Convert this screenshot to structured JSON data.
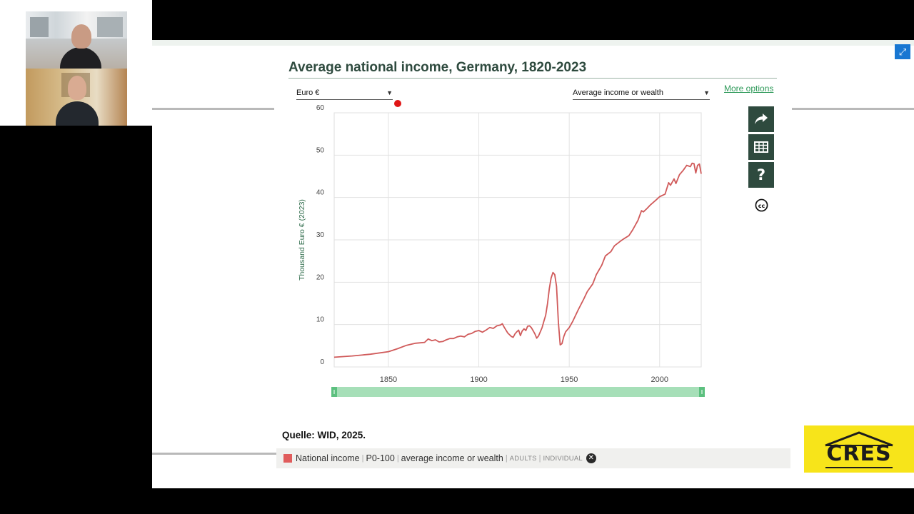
{
  "chart": {
    "title": "Average national income, Germany, 1820-2023",
    "currency_select": "Euro €",
    "metric_select": "Average income or wealth",
    "more_options": "More options",
    "source": "Quelle: WID, 2025."
  },
  "legend": {
    "series": "National income",
    "group": "P0-100",
    "metric": "average income or wealth",
    "population": "ADULTS",
    "unit": "INDIVIDUAL",
    "color": "#e05c5c"
  },
  "logo": {
    "text": "CRES",
    "bg_color": "#f7e41a"
  },
  "icons": [
    "expand-icon",
    "share-icon",
    "table-icon",
    "help-icon",
    "creative-commons-icon",
    "close-icon",
    "dropdown-caret-icon"
  ],
  "chart_data": {
    "type": "line",
    "ylabel": "Thousand Euro € (2023)",
    "xlabel": "",
    "xlim": [
      1820,
      2023
    ],
    "ylim": [
      0,
      60
    ],
    "xticks": [
      1850,
      1900,
      1950,
      2000
    ],
    "yticks": [
      0,
      10,
      20,
      30,
      40,
      50,
      60
    ],
    "grid": true,
    "series": [
      {
        "name": "National income",
        "color": "#d05a5a",
        "x": [
          1820,
          1830,
          1840,
          1850,
          1855,
          1860,
          1865,
          1870,
          1872,
          1874,
          1876,
          1878,
          1880,
          1882,
          1884,
          1886,
          1888,
          1890,
          1892,
          1894,
          1896,
          1898,
          1900,
          1902,
          1904,
          1906,
          1908,
          1910,
          1912,
          1913,
          1914,
          1916,
          1918,
          1919,
          1920,
          1921,
          1922,
          1923,
          1924,
          1925,
          1926,
          1927,
          1928,
          1929,
          1930,
          1931,
          1932,
          1933,
          1934,
          1935,
          1936,
          1937,
          1938,
          1939,
          1940,
          1941,
          1942,
          1943,
          1944,
          1945,
          1946,
          1947,
          1948,
          1950,
          1952,
          1955,
          1958,
          1960,
          1963,
          1965,
          1968,
          1970,
          1973,
          1975,
          1978,
          1980,
          1983,
          1985,
          1988,
          1990,
          1991,
          1993,
          1995,
          1998,
          2000,
          2003,
          2005,
          2006,
          2008,
          2009,
          2011,
          2013,
          2015,
          2017,
          2018,
          2019,
          2020,
          2021,
          2022,
          2023
        ],
        "y": [
          2.3,
          2.6,
          3.0,
          3.6,
          4.3,
          5.1,
          5.6,
          5.8,
          6.6,
          6.2,
          6.4,
          5.9,
          6.0,
          6.4,
          6.7,
          6.7,
          7.1,
          7.3,
          7.1,
          7.7,
          7.9,
          8.4,
          8.6,
          8.2,
          8.7,
          9.3,
          9.1,
          9.7,
          9.9,
          10.2,
          9.4,
          8.0,
          7.2,
          7.0,
          7.8,
          8.3,
          8.7,
          7.4,
          8.5,
          9.0,
          8.6,
          9.6,
          9.7,
          9.3,
          8.6,
          7.8,
          6.8,
          7.3,
          8.3,
          9.3,
          10.8,
          12.2,
          15.0,
          18.5,
          21.0,
          22.3,
          21.8,
          19.0,
          10.5,
          5.2,
          5.5,
          7.2,
          8.3,
          9.3,
          10.8,
          13.5,
          16.0,
          17.8,
          19.6,
          21.8,
          24.0,
          26.2,
          27.2,
          28.6,
          29.6,
          30.2,
          31.0,
          32.3,
          34.6,
          36.9,
          36.6,
          37.4,
          38.3,
          39.4,
          40.2,
          40.8,
          43.5,
          42.9,
          44.4,
          43.3,
          45.4,
          46.4,
          47.6,
          47.3,
          48.1,
          48.0,
          45.8,
          47.6,
          47.9,
          45.6
        ]
      }
    ]
  }
}
